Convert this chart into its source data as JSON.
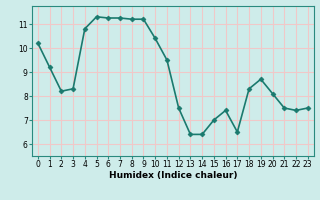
{
  "x": [
    0,
    1,
    2,
    3,
    4,
    5,
    6,
    7,
    8,
    9,
    10,
    11,
    12,
    13,
    14,
    15,
    16,
    17,
    18,
    19,
    20,
    21,
    22,
    23
  ],
  "y": [
    10.2,
    9.2,
    8.2,
    8.3,
    10.8,
    11.3,
    11.25,
    11.25,
    11.2,
    11.2,
    10.4,
    9.5,
    7.5,
    6.4,
    6.4,
    7.0,
    7.4,
    6.5,
    8.3,
    8.7,
    8.1,
    7.5,
    7.4,
    7.5
  ],
  "line_color": "#1a7a6e",
  "bg_color": "#ceecea",
  "grid_color": "#f0c8c8",
  "xlabel": "Humidex (Indice chaleur)",
  "ylim": [
    5.5,
    11.75
  ],
  "xlim": [
    -0.5,
    23.5
  ],
  "yticks": [
    6,
    7,
    8,
    9,
    10,
    11
  ],
  "xticks": [
    0,
    1,
    2,
    3,
    4,
    5,
    6,
    7,
    8,
    9,
    10,
    11,
    12,
    13,
    14,
    15,
    16,
    17,
    18,
    19,
    20,
    21,
    22,
    23
  ],
  "xtick_labels": [
    "0",
    "1",
    "2",
    "3",
    "4",
    "5",
    "6",
    "7",
    "8",
    "9",
    "10",
    "11",
    "12",
    "13",
    "14",
    "15",
    "16",
    "17",
    "18",
    "19",
    "20",
    "21",
    "22",
    "23"
  ],
  "marker": "D",
  "marker_size": 2.5,
  "line_width": 1.2,
  "spine_color": "#2a8a7e",
  "tick_fontsize": 5.5,
  "xlabel_fontsize": 6.5
}
